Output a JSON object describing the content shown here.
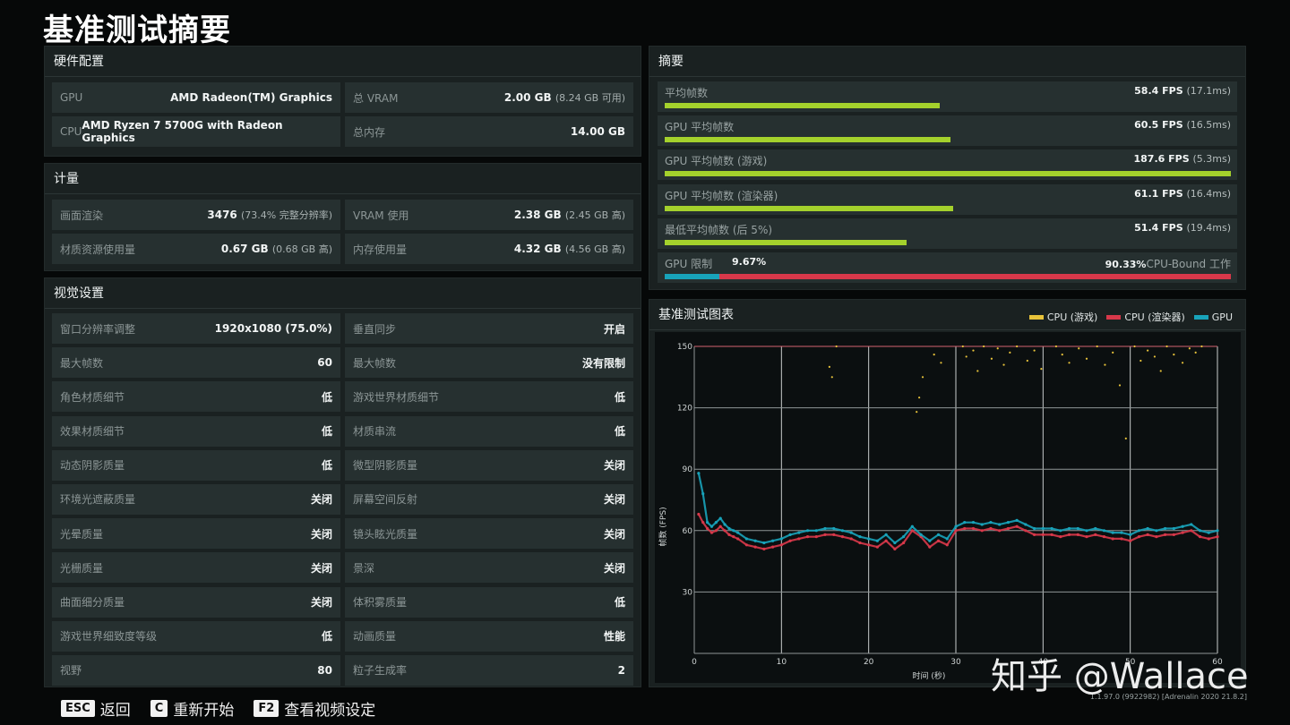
{
  "page_title": "基准测试摘要",
  "hardware": {
    "header": "硬件配置",
    "rows": [
      {
        "label": "GPU",
        "value": "AMD Radeon(TM) Graphics",
        "sub": ""
      },
      {
        "label": "总 VRAM",
        "value": "2.00 GB",
        "sub": "(8.24 GB 可用)"
      },
      {
        "label": "CPU",
        "value": "AMD Ryzen 7 5700G with Radeon Graphics",
        "sub": ""
      },
      {
        "label": "总内存",
        "value": "14.00 GB",
        "sub": ""
      }
    ]
  },
  "metering": {
    "header": "计量",
    "rows": [
      {
        "label": "画面渲染",
        "value": "3476",
        "sub": "(73.4% 完整分辨率)"
      },
      {
        "label": "VRAM 使用",
        "value": "2.38 GB",
        "sub": "(2.45 GB 高)"
      },
      {
        "label": "材质资源使用量",
        "value": "0.67 GB",
        "sub": "(0.68 GB 高)"
      },
      {
        "label": "内存使用量",
        "value": "4.32 GB",
        "sub": "(4.56 GB 高)"
      }
    ]
  },
  "visual": {
    "header": "视觉设置",
    "rows": [
      {
        "label": "窗口分辨率调整",
        "value": "1920x1080 (75.0%)"
      },
      {
        "label": "垂直同步",
        "value": "开启"
      },
      {
        "label": "最大帧数",
        "value": "60"
      },
      {
        "label": "最大帧数",
        "value": "没有限制"
      },
      {
        "label": "角色材质细节",
        "value": "低"
      },
      {
        "label": "游戏世界材质细节",
        "value": "低"
      },
      {
        "label": "效果材质细节",
        "value": "低"
      },
      {
        "label": "材质串流",
        "value": "低"
      },
      {
        "label": "动态阴影质量",
        "value": "低"
      },
      {
        "label": "微型阴影质量",
        "value": "关闭"
      },
      {
        "label": "环境光遮蔽质量",
        "value": "关闭"
      },
      {
        "label": "屏幕空间反射",
        "value": "关闭"
      },
      {
        "label": "光晕质量",
        "value": "关闭"
      },
      {
        "label": "镜头眩光质量",
        "value": "关闭"
      },
      {
        "label": "光栅质量",
        "value": "关闭"
      },
      {
        "label": "景深",
        "value": "关闭"
      },
      {
        "label": "曲面细分质量",
        "value": "关闭"
      },
      {
        "label": "体积雾质量",
        "value": "低"
      },
      {
        "label": "游戏世界细致度等级",
        "value": "低"
      },
      {
        "label": "动画质量",
        "value": "性能"
      },
      {
        "label": "视野",
        "value": "80"
      },
      {
        "label": "粒子生成率",
        "value": "2"
      }
    ]
  },
  "summary": {
    "header": "摘要",
    "rows": [
      {
        "label": "平均帧数",
        "value": "58.4 FPS",
        "sub": "(17.1ms)",
        "fill": 0.486
      },
      {
        "label": "GPU 平均帧数",
        "value": "60.5 FPS",
        "sub": "(16.5ms)",
        "fill": 0.504
      },
      {
        "label": "GPU 平均帧数 (游戏)",
        "value": "187.6 FPS",
        "sub": "(5.3ms)",
        "fill": 1.0
      },
      {
        "label": "GPU 平均帧数 (渲染器)",
        "value": "61.1 FPS",
        "sub": "(16.4ms)",
        "fill": 0.509
      },
      {
        "label": "最低平均帧数 (后 5%)",
        "value": "51.4 FPS",
        "sub": "(19.4ms)",
        "fill": 0.428
      }
    ],
    "limit": {
      "label": "GPU 限制",
      "gpu_pct": "9.67%",
      "cpu_pct": "90.33%",
      "cpu_label": "CPU-Bound 工作",
      "gpu_fraction": 0.0967
    }
  },
  "chart_panel": {
    "header": "基准测试图表"
  },
  "chart_data": {
    "type": "scatter",
    "xlabel": "时间 (秒)",
    "ylabel": "帧数 (FPS)",
    "xlim": [
      0,
      60
    ],
    "ylim": [
      0,
      150
    ],
    "x_ticks": [
      "0",
      "10",
      "20",
      "30",
      "40",
      "50",
      "60"
    ],
    "y_ticks": [
      "30",
      "60",
      "90",
      "120",
      "150"
    ],
    "grid": true,
    "legend_position": "top-right",
    "series": [
      {
        "name": "CPU (游戏)",
        "color": "#e8c33a",
        "points": [
          [
            15.5,
            140
          ],
          [
            15.8,
            135
          ],
          [
            16.3,
            150
          ],
          [
            25.5,
            118
          ],
          [
            25.8,
            125
          ],
          [
            26.2,
            135
          ],
          [
            27.5,
            146
          ],
          [
            28.3,
            142
          ],
          [
            30.8,
            150
          ],
          [
            31.2,
            145
          ],
          [
            32.0,
            148
          ],
          [
            32.5,
            138
          ],
          [
            33.2,
            150
          ],
          [
            34.1,
            144
          ],
          [
            34.8,
            149
          ],
          [
            35.5,
            141
          ],
          [
            36.2,
            147
          ],
          [
            37.0,
            150
          ],
          [
            38.2,
            143
          ],
          [
            39.0,
            148
          ],
          [
            39.8,
            139
          ],
          [
            41.5,
            150
          ],
          [
            42.2,
            146
          ],
          [
            43.0,
            142
          ],
          [
            44.1,
            149
          ],
          [
            45.0,
            144
          ],
          [
            46.2,
            150
          ],
          [
            47.1,
            141
          ],
          [
            48.0,
            147
          ],
          [
            48.8,
            131
          ],
          [
            49.5,
            105
          ],
          [
            50.5,
            150
          ],
          [
            51.2,
            143
          ],
          [
            52.0,
            148
          ],
          [
            52.8,
            145
          ],
          [
            53.5,
            138
          ],
          [
            54.2,
            150
          ],
          [
            55.0,
            146
          ],
          [
            56.0,
            142
          ],
          [
            56.8,
            149
          ],
          [
            57.5,
            147
          ],
          [
            58.2,
            150
          ]
        ]
      },
      {
        "name": "CPU (渲染器)",
        "color": "#d8384a",
        "x": [
          0.5,
          1,
          1.5,
          2,
          2.5,
          3,
          3.5,
          4,
          4.5,
          5,
          6,
          7,
          8,
          9,
          10,
          11,
          12,
          13,
          14,
          15,
          16,
          17,
          18,
          19,
          20,
          21,
          22,
          23,
          24,
          25,
          26,
          27,
          28,
          29,
          30,
          31,
          32,
          33,
          34,
          35,
          36,
          37,
          38,
          39,
          40,
          41,
          42,
          43,
          44,
          45,
          46,
          47,
          48,
          49,
          50,
          51,
          52,
          53,
          54,
          55,
          56,
          57,
          58,
          59,
          60
        ],
        "y": [
          68,
          64,
          61,
          59,
          60,
          62,
          60,
          58,
          57,
          56,
          53,
          52,
          51,
          52,
          53,
          55,
          56,
          57,
          57,
          58,
          58,
          57,
          56,
          54,
          53,
          52,
          55,
          51,
          54,
          60,
          57,
          52,
          55,
          53,
          60,
          61,
          61,
          60,
          61,
          60,
          61,
          62,
          60,
          58,
          58,
          58,
          57,
          58,
          58,
          57,
          58,
          57,
          56,
          56,
          55,
          57,
          58,
          57,
          58,
          58,
          59,
          60,
          57,
          56,
          57
        ]
      },
      {
        "name": "GPU",
        "color": "#18a3ba",
        "x": [
          0.5,
          1,
          1.5,
          2,
          2.5,
          3,
          3.5,
          4,
          4.5,
          5,
          6,
          7,
          8,
          9,
          10,
          11,
          12,
          13,
          14,
          15,
          16,
          17,
          18,
          19,
          20,
          21,
          22,
          23,
          24,
          25,
          26,
          27,
          28,
          29,
          30,
          31,
          32,
          33,
          34,
          35,
          36,
          37,
          38,
          39,
          40,
          41,
          42,
          43,
          44,
          45,
          46,
          47,
          48,
          49,
          50,
          51,
          52,
          53,
          54,
          55,
          56,
          57,
          58,
          59,
          60
        ],
        "y": [
          88,
          78,
          64,
          62,
          64,
          66,
          63,
          61,
          60,
          59,
          56,
          55,
          54,
          55,
          56,
          58,
          59,
          60,
          60,
          61,
          61,
          60,
          59,
          57,
          56,
          55,
          58,
          54,
          57,
          62,
          58,
          55,
          58,
          56,
          62,
          64,
          64,
          63,
          64,
          63,
          64,
          65,
          63,
          61,
          61,
          61,
          60,
          61,
          61,
          60,
          61,
          60,
          59,
          59,
          58,
          60,
          61,
          60,
          61,
          61,
          62,
          63,
          60,
          59,
          60
        ]
      }
    ]
  },
  "footer": {
    "keys": [
      {
        "key": "ESC",
        "label": "返回"
      },
      {
        "key": "C",
        "label": "重新开始"
      },
      {
        "key": "F2",
        "label": "查看视频设定"
      }
    ],
    "version": "1.1.97.0 (9922982) [Adrenalin 2020 21.8.2]"
  },
  "watermark": "知乎 @Wallace"
}
